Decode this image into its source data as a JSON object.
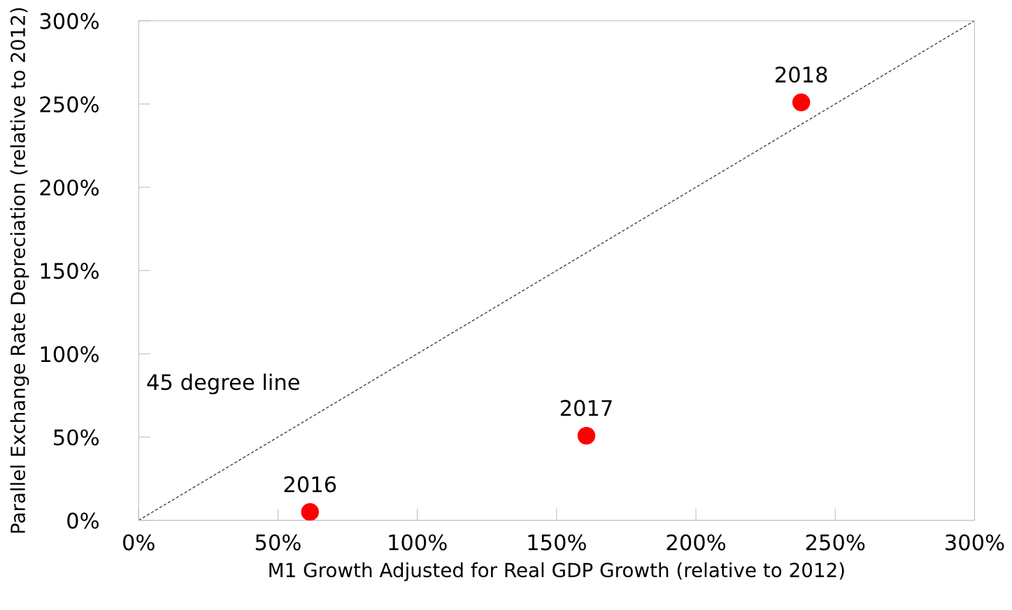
{
  "chart_data": {
    "type": "scatter",
    "xlabel": "M1 Growth Adjusted for Real GDP Growth (relative to 2012)",
    "ylabel": "Parallel Exchange Rate Depreciation (relative to 2012)",
    "xlim": [
      0,
      300
    ],
    "ylim": [
      0,
      300
    ],
    "xticks": [
      {
        "value": 0,
        "label": "0%"
      },
      {
        "value": 50,
        "label": "50%"
      },
      {
        "value": 100,
        "label": "100%"
      },
      {
        "value": 150,
        "label": "150%"
      },
      {
        "value": 200,
        "label": "200%"
      },
      {
        "value": 250,
        "label": "250%"
      },
      {
        "value": 300,
        "label": "300%"
      }
    ],
    "yticks": [
      {
        "value": 0,
        "label": "0%"
      },
      {
        "value": 50,
        "label": "50%"
      },
      {
        "value": 100,
        "label": "100%"
      },
      {
        "value": 150,
        "label": "150%"
      },
      {
        "value": 200,
        "label": "200%"
      },
      {
        "value": 250,
        "label": "250%"
      },
      {
        "value": 300,
        "label": "300%"
      }
    ],
    "grid": false,
    "legend": false,
    "marker": "circle",
    "series": [
      {
        "color": "#ff0000",
        "x": [
          61.5,
          160.7,
          237.8
        ],
        "values": [
          5,
          50.8,
          251
        ]
      },
      {
        "type": "line",
        "color": "#404040",
        "line_style": "dashed",
        "marker": "none",
        "x": [
          0,
          300
        ],
        "values": [
          0,
          300
        ]
      }
    ],
    "annotations": [
      {
        "text": "2016",
        "x": 61.5,
        "y": 5
      },
      {
        "text": "2017",
        "x": 160.7,
        "y": 50.8
      },
      {
        "text": "2018",
        "x": 237.8,
        "y": 251
      },
      "45 degree line"
    ]
  }
}
